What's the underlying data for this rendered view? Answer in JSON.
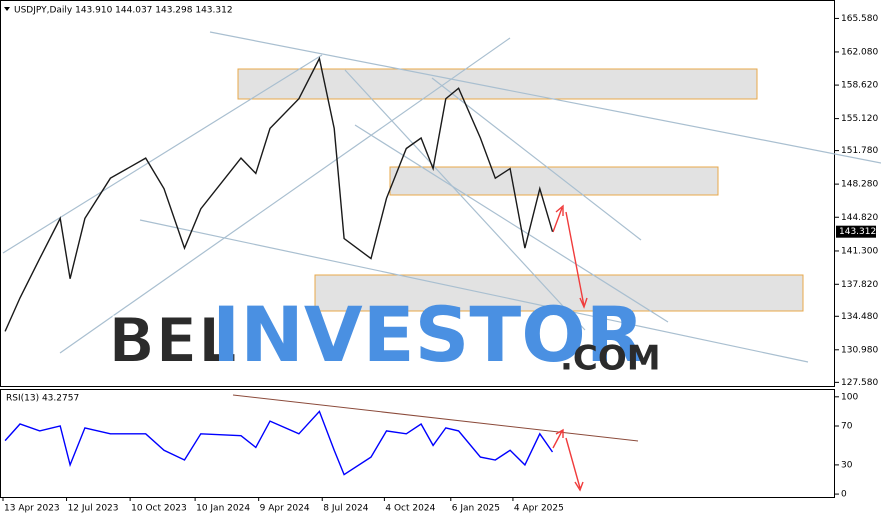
{
  "chart_data": [
    {
      "type": "line",
      "title": "USDJPY,Daily  143.910 144.037 143.298 143.312",
      "x": [
        "2023-04-16",
        "2023-05-07",
        "2023-06-04",
        "2023-07-03",
        "2023-07-17",
        "2023-08-07",
        "2023-09-12",
        "2023-11-01",
        "2023-11-27",
        "2023-12-26",
        "2024-01-18",
        "2024-03-15",
        "2024-04-05",
        "2024-04-25",
        "2024-06-05",
        "2024-07-04",
        "2024-07-25",
        "2024-08-08",
        "2024-09-15",
        "2024-10-07",
        "2024-11-04",
        "2024-11-25",
        "2024-12-12",
        "2024-12-30",
        "2025-01-17",
        "2025-02-17",
        "2025-03-10",
        "2025-03-31",
        "2025-04-21",
        "2025-05-12",
        "2025-05-30"
      ],
      "series": [
        {
          "name": "USDJPY",
          "color": "#1a1a1a",
          "values": [
            132.9,
            136.4,
            140.5,
            144.7,
            138.4,
            144.7,
            148.9,
            151.0,
            147.8,
            141.6,
            145.7,
            151.0,
            149.4,
            154.1,
            157.2,
            161.4,
            154.1,
            142.6,
            140.5,
            146.8,
            152.0,
            153.1,
            149.9,
            157.2,
            158.3,
            153.1,
            148.9,
            149.9,
            141.6,
            147.8,
            143.312
          ]
        }
      ],
      "last_price": {
        "value": 143.312,
        "label": "143.312"
      },
      "xlim": [
        "2023-04-13",
        "2026-07-04"
      ],
      "ylim": [
        127.2,
        167.4
      ],
      "yticks": [
        {
          "value": 165.58,
          "label": "165.580"
        },
        {
          "value": 162.08,
          "label": "162.080"
        },
        {
          "value": 158.62,
          "label": "158.620"
        },
        {
          "value": 155.12,
          "label": "155.120"
        },
        {
          "value": 151.78,
          "label": "151.780"
        },
        {
          "value": 148.28,
          "label": "148.280"
        },
        {
          "value": 144.82,
          "label": "144.820"
        },
        {
          "value": 141.3,
          "label": "141.300"
        },
        {
          "value": 137.82,
          "label": "137.820"
        },
        {
          "value": 134.48,
          "label": "134.480"
        },
        {
          "value": 130.98,
          "label": "130.980"
        },
        {
          "value": 127.58,
          "label": "127.580"
        }
      ],
      "xticks": [
        {
          "value": "2023-04-13",
          "label": "13 Apr 2023"
        },
        {
          "value": "2023-07-12",
          "label": "12 Jul 2023"
        },
        {
          "value": "2023-10-10",
          "label": "10 Oct 2023"
        },
        {
          "value": "2024-01-10",
          "label": "10 Jan 2024"
        },
        {
          "value": "2024-04-09",
          "label": "9 Apr 2024"
        },
        {
          "value": "2024-07-08",
          "label": "8 Jul 2024"
        },
        {
          "value": "2024-10-04",
          "label": "4 Oct 2024"
        },
        {
          "value": "2025-01-06",
          "label": "6 Jan 2025"
        },
        {
          "value": "2025-04-04",
          "label": "4 Apr 2025"
        }
      ],
      "watermark": [
        "BEL",
        "INVESTOR",
        ".COM"
      ]
    },
    {
      "type": "line",
      "title": "RSI(13) 43.2757",
      "x": [
        "2023-04-16",
        "2023-05-07",
        "2023-06-04",
        "2023-07-03",
        "2023-07-17",
        "2023-08-07",
        "2023-09-12",
        "2023-11-01",
        "2023-11-27",
        "2023-12-26",
        "2024-01-18",
        "2024-03-15",
        "2024-04-05",
        "2024-04-25",
        "2024-06-05",
        "2024-07-04",
        "2024-07-25",
        "2024-08-08",
        "2024-09-15",
        "2024-10-07",
        "2024-11-04",
        "2024-11-25",
        "2024-12-12",
        "2024-12-30",
        "2025-01-17",
        "2025-02-17",
        "2025-03-10",
        "2025-03-31",
        "2025-04-21",
        "2025-05-12",
        "2025-05-30"
      ],
      "series": [
        {
          "name": "RSI(13)",
          "color": "#0000ff",
          "values": [
            55,
            72,
            65,
            70,
            30,
            68,
            62,
            62,
            45,
            35,
            62,
            60,
            48,
            75,
            62,
            85,
            45,
            20,
            38,
            65,
            62,
            72,
            50,
            68,
            65,
            38,
            35,
            45,
            30,
            62,
            43.2757
          ]
        }
      ],
      "ylim": [
        -3,
        107
      ],
      "yticks": [
        100,
        70,
        30,
        0
      ]
    }
  ]
}
